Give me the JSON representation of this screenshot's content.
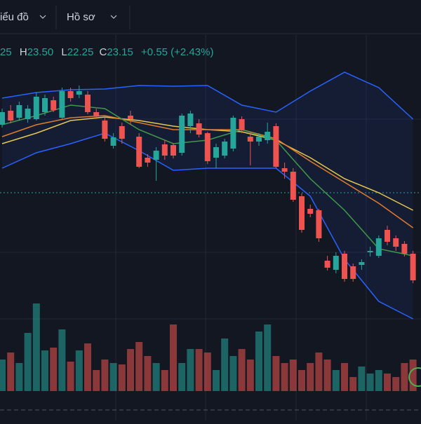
{
  "tabs": [
    {
      "label": "iểu đồ"
    },
    {
      "label": "Hồ sơ"
    }
  ],
  "ohlc": {
    "open": "25",
    "high_label": "H",
    "high": "23.50",
    "low_label": "L",
    "low": "22.25",
    "close_label": "C",
    "close": "23.15",
    "change": "+0.55 (+2.43%)"
  },
  "chart": {
    "type": "candlestick",
    "ylim": [
      0,
      600
    ],
    "up_color": "#26a69a",
    "down_color": "#ef5350",
    "open": [
      422,
      442,
      432,
      430,
      430,
      440,
      457,
      432,
      470,
      465,
      465,
      440,
      428,
      392,
      420,
      435,
      405,
      375,
      372,
      394,
      393,
      382,
      420,
      424,
      410,
      375,
      378,
      388,
      430,
      405,
      398,
      400,
      420,
      360,
      355,
      320,
      302,
      300,
      228,
      215,
      238,
      220,
      222,
      240,
      235,
      272,
      260,
      252,
      238
    ],
    "close": [
      440,
      428,
      450,
      445,
      462,
      460,
      443,
      470,
      460,
      470,
      440,
      435,
      402,
      404,
      402,
      430,
      362,
      368,
      385,
      378,
      378,
      435,
      438,
      408,
      370,
      390,
      398,
      432,
      415,
      398,
      405,
      412,
      362,
      355,
      315,
      272,
      295,
      260,
      218,
      235,
      202,
      202,
      226,
      242,
      260,
      255,
      248,
      238,
      200
    ],
    "high": [
      445,
      450,
      455,
      450,
      468,
      465,
      462,
      475,
      475,
      478,
      470,
      445,
      432,
      410,
      425,
      442,
      410,
      380,
      390,
      400,
      396,
      438,
      442,
      430,
      412,
      395,
      402,
      435,
      434,
      412,
      410,
      425,
      424,
      368,
      360,
      324,
      308,
      302,
      235,
      240,
      242,
      224,
      230,
      248,
      264,
      278,
      264,
      256,
      242
    ],
    "low": [
      418,
      424,
      428,
      425,
      428,
      435,
      440,
      430,
      455,
      460,
      437,
      430,
      398,
      388,
      395,
      422,
      360,
      362,
      342,
      372,
      374,
      378,
      410,
      404,
      366,
      360,
      374,
      384,
      410,
      364,
      392,
      395,
      360,
      345,
      312,
      268,
      290,
      255,
      214,
      210,
      198,
      198,
      215,
      234,
      232,
      250,
      242,
      234,
      196
    ],
    "volumes": [
      45,
      55,
      40,
      83,
      125,
      58,
      62,
      88,
      42,
      58,
      68,
      30,
      45,
      40,
      38,
      60,
      70,
      50,
      40,
      30,
      95,
      40,
      60,
      60,
      55,
      30,
      75,
      50,
      60,
      45,
      85,
      95,
      50,
      40,
      45,
      30,
      40,
      55,
      45,
      30,
      40,
      20,
      35,
      25,
      30,
      25,
      20,
      40,
      45
    ],
    "lines": {
      "x": [
        0,
        4,
        8,
        12,
        16,
        20,
        24,
        28,
        32,
        36,
        40,
        44,
        48
      ],
      "series": [
        {
          "color": "#2962ff",
          "values": [
            460,
            468,
            472,
            473,
            478,
            477,
            478,
            450,
            440,
            470,
            497,
            475,
            430
          ]
        },
        {
          "color": "#2962ff",
          "values": [
            360,
            382,
            395,
            410,
            385,
            357,
            360,
            360,
            360,
            320,
            230,
            170,
            145
          ]
        },
        {
          "color": "#e6c84a",
          "values": [
            395,
            410,
            428,
            433,
            428,
            420,
            415,
            412,
            400,
            375,
            345,
            325,
            300
          ]
        },
        {
          "color": "#e07b2e",
          "values": [
            405,
            422,
            432,
            435,
            425,
            415,
            415,
            415,
            402,
            370,
            340,
            310,
            275
          ]
        },
        {
          "color": "#3f9a4a",
          "values": [
            422,
            435,
            450,
            445,
            415,
            395,
            400,
            415,
            400,
            345,
            300,
            245,
            235
          ]
        }
      ]
    }
  }
}
